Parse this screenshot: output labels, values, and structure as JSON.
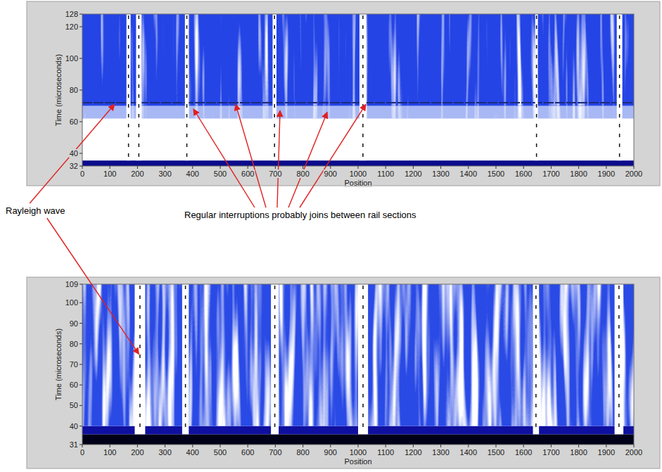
{
  "chart_data": [
    {
      "type": "heatmap",
      "xlabel": "Position",
      "ylabel": "Time (microseconds)",
      "xlim": [
        0,
        2000
      ],
      "xticks": [
        0,
        100,
        200,
        300,
        400,
        500,
        600,
        700,
        800,
        900,
        1000,
        1100,
        1200,
        1300,
        1400,
        1500,
        1600,
        1700,
        1800,
        1900,
        2000
      ],
      "ylim": [
        32,
        128
      ],
      "yticks": [
        32,
        40,
        60,
        80,
        100,
        120,
        128
      ],
      "bands": [
        {
          "from": 32,
          "to": 35.5,
          "color": "#0c0c8c"
        },
        {
          "from": 35.5,
          "to": 62,
          "color": "#ffffff"
        },
        {
          "from": 62,
          "to": 70,
          "color": "#a8b8f4"
        },
        {
          "from": 70,
          "to": 128,
          "color": "#2444e6"
        }
      ],
      "interruptions": [
        [
          160,
          175
        ],
        [
          195,
          215
        ],
        [
          372,
          386
        ],
        [
          690,
          704
        ],
        [
          1005,
          1030
        ],
        [
          1642,
          1652
        ],
        [
          1938,
          1958
        ]
      ],
      "line": {
        "y": 72,
        "color": "#1c2a7a"
      }
    },
    {
      "type": "heatmap",
      "xlabel": "Position",
      "ylabel": "Time (microseconds)",
      "xlim": [
        0,
        2000
      ],
      "xticks": [
        0,
        100,
        200,
        300,
        400,
        500,
        600,
        700,
        800,
        900,
        1000,
        1100,
        1200,
        1300,
        1400,
        1500,
        1600,
        1700,
        1800,
        1900,
        2000
      ],
      "ylim": [
        31,
        109
      ],
      "yticks": [
        31,
        40,
        50,
        60,
        70,
        80,
        90,
        100,
        109
      ],
      "bands": [
        {
          "from": 31,
          "to": 36,
          "color": "#000018"
        },
        {
          "from": 36,
          "to": 40,
          "color": "#1010a0"
        },
        {
          "from": 40,
          "to": 109,
          "color": "#2a4ae6"
        }
      ],
      "interruptions": [
        [
          190,
          228
        ],
        [
          362,
          386
        ],
        [
          684,
          712
        ],
        [
          1000,
          1036
        ],
        [
          1634,
          1656
        ],
        [
          1930,
          1962
        ]
      ]
    }
  ],
  "annotations": [
    {
      "text": "Rayleigh wave",
      "targets": [
        {
          "chart": 0,
          "x": 117,
          "y": 71
        },
        {
          "chart": 1,
          "x": 205,
          "y": 75
        }
      ]
    },
    {
      "text": "Regular interruptions probably joins between rail sections",
      "targets": [
        {
          "chart": 0,
          "x": 403,
          "y": 68
        },
        {
          "chart": 0,
          "x": 556,
          "y": 71
        },
        {
          "chart": 0,
          "x": 717,
          "y": 67
        },
        {
          "chart": 0,
          "x": 888,
          "y": 66
        },
        {
          "chart": 0,
          "x": 1028,
          "y": 71
        }
      ]
    }
  ]
}
